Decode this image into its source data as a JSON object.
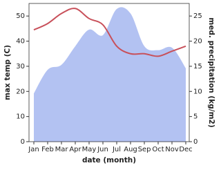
{
  "chart_data": {
    "type": "area-line",
    "x_label": "date (month)",
    "y_label": "max temp (C)",
    "y2_label": "med. precipitation (kg/m2)",
    "categories": [
      "Jan",
      "Feb",
      "Mar",
      "Apr",
      "May",
      "Jun",
      "Jul",
      "Aug",
      "Sep",
      "Oct",
      "Nov",
      "Dec"
    ],
    "series": [
      {
        "name": "med. precipitation",
        "type": "area",
        "axis": "y2",
        "color": "#b3c2f2",
        "values": [
          9.6,
          14.3,
          15.3,
          19,
          22.3,
          21.2,
          26.4,
          25.5,
          19,
          18.2,
          18.7,
          14.6
        ]
      },
      {
        "name": "max temp",
        "type": "line",
        "color": "#c8505a",
        "values": [
          44.5,
          47,
          51,
          53,
          49,
          46.5,
          38,
          35,
          35,
          34,
          36,
          38
        ]
      }
    ],
    "ylim": [
      0,
      55
    ],
    "yticks": [
      0,
      10,
      20,
      30,
      40,
      50
    ],
    "y2lim": [
      0,
      27.5
    ],
    "y2ticks": [
      0,
      5,
      10,
      15,
      20,
      25
    ]
  }
}
